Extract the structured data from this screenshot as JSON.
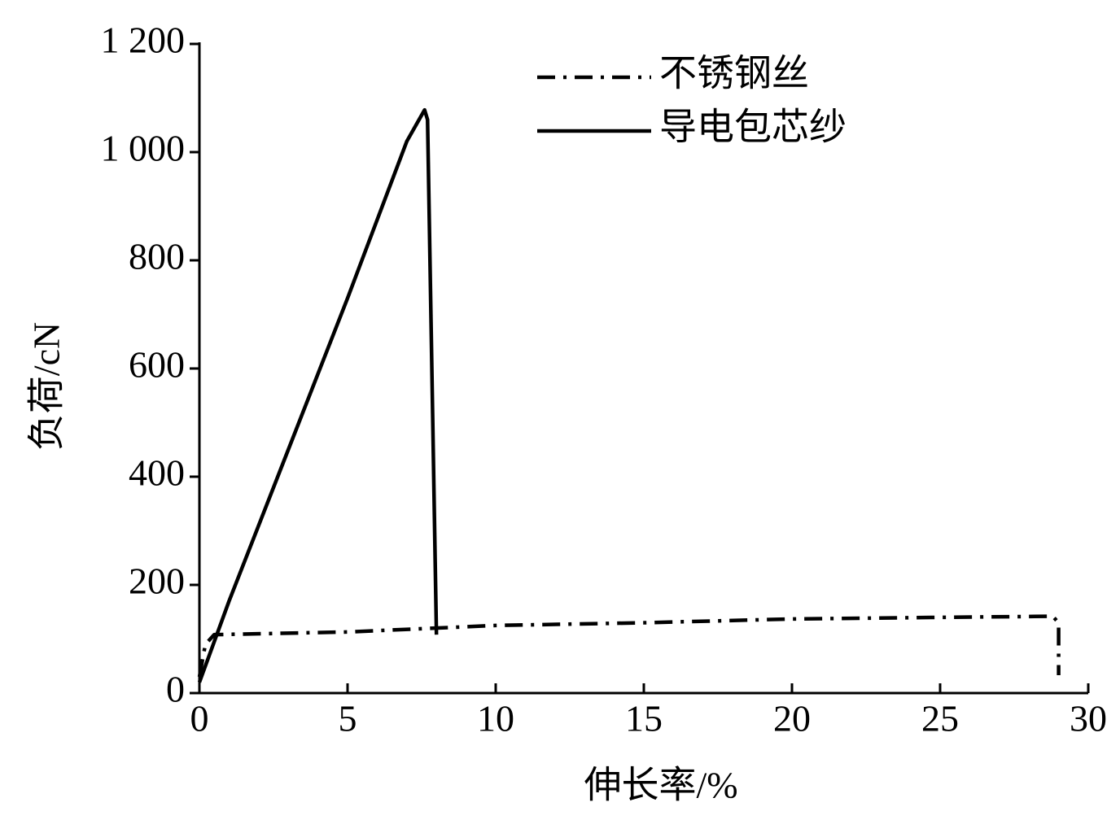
{
  "chart_data": {
    "type": "line",
    "xlabel": "伸长率/%",
    "ylabel": "负荷/cN",
    "xlim": [
      0,
      30
    ],
    "xticks": [
      0,
      5,
      10,
      15,
      20,
      25,
      30
    ],
    "ylim": [
      0,
      1200
    ],
    "yticks": [
      0,
      200,
      400,
      600,
      800,
      {
        "value": 1000,
        "label": "1 000"
      },
      {
        "value": 1200,
        "label": "1 200"
      }
    ],
    "legend": "upper right",
    "grid": false,
    "series": [
      {
        "name": "不锈钢丝",
        "color": "#000000",
        "style": "dashdot",
        "x": [
          0,
          0.2,
          0.5,
          5,
          10,
          15,
          20,
          25,
          28.8,
          29,
          29
        ],
        "values": [
          30,
          90,
          108,
          113,
          125,
          130,
          137,
          140,
          142,
          130,
          33
        ]
      },
      {
        "name": "导电包芯纱",
        "color": "#000000",
        "style": "solid",
        "x": [
          0,
          1,
          3,
          5,
          7,
          7.6,
          7.7,
          8
        ],
        "values": [
          20,
          170,
          450,
          730,
          1020,
          1078,
          1060,
          108
        ]
      }
    ]
  }
}
